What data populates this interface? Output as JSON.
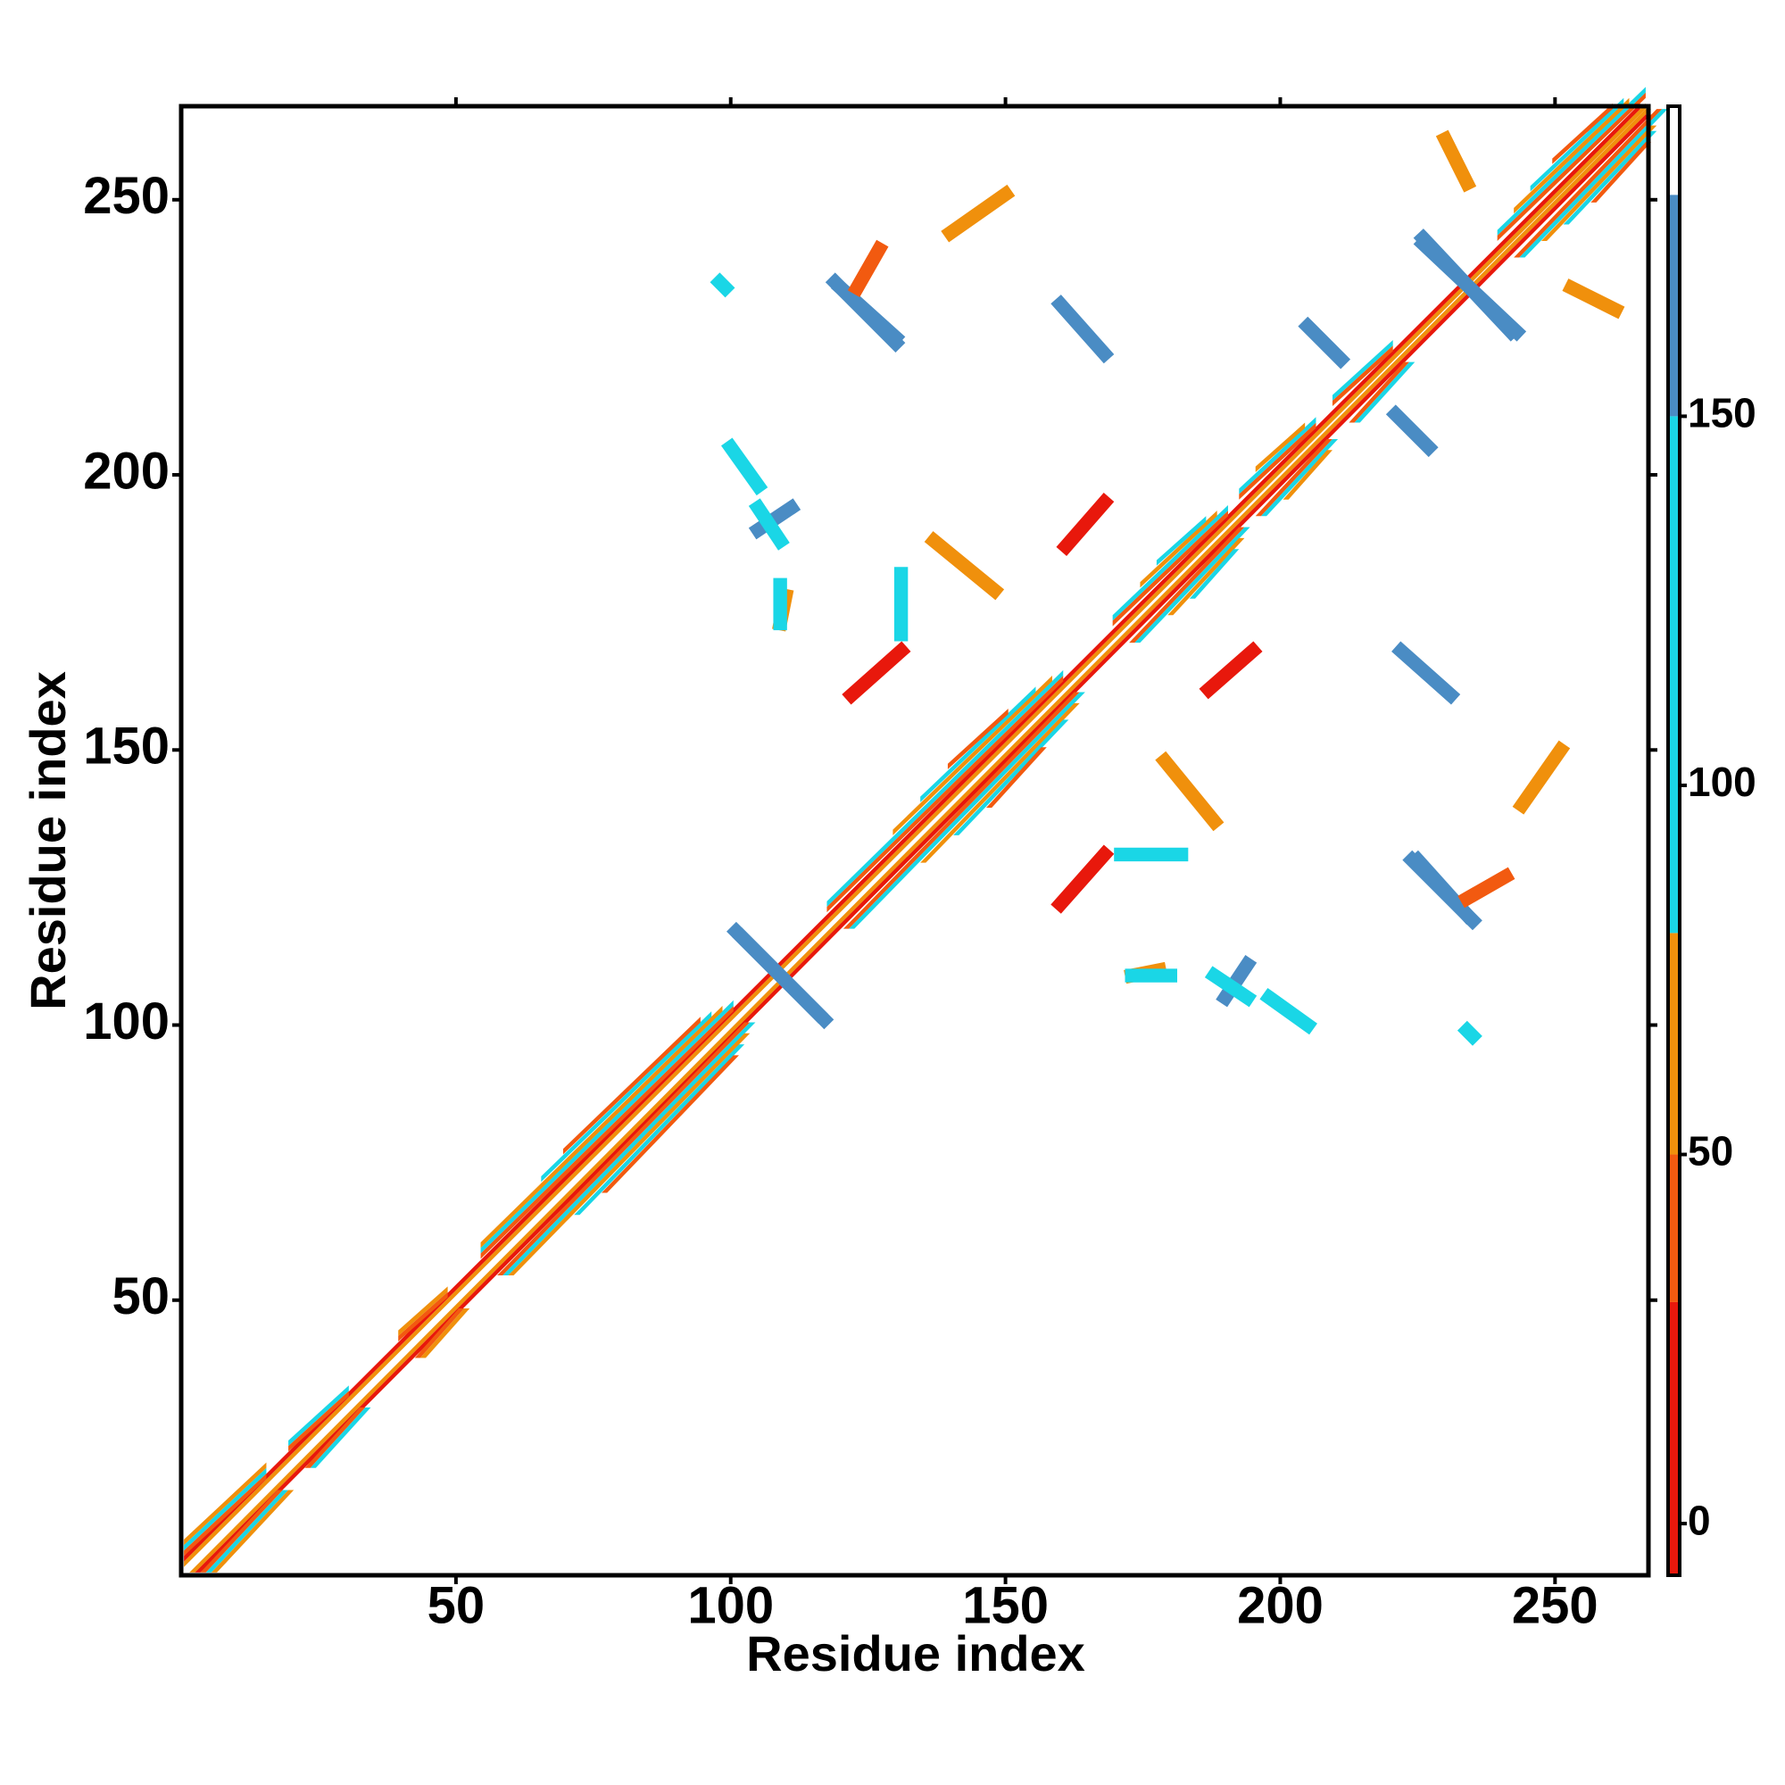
{
  "chart_data": {
    "type": "heatmap",
    "x_label": "Residue index",
    "y_label": "Residue index",
    "xlim": [
      0,
      267
    ],
    "ylim": [
      0,
      267
    ],
    "xticks": [
      50,
      100,
      150,
      200,
      250
    ],
    "yticks": [
      50,
      100,
      150,
      200,
      250
    ],
    "colorbar": {
      "lim": [
        -7,
        192
      ],
      "ticks": [
        0,
        50,
        100,
        150
      ],
      "levels": [
        {
          "from": -7,
          "to": 30,
          "color": "#e8180c"
        },
        {
          "from": 30,
          "to": 50,
          "color": "#f25a10"
        },
        {
          "from": 50,
          "to": 80,
          "color": "#f0900c"
        },
        {
          "from": 80,
          "to": 150,
          "color": "#1ad6e6"
        },
        {
          "from": 150,
          "to": 180,
          "color": "#4a8cc4"
        },
        {
          "from": 180,
          "to": 192,
          "color": "#ffffff"
        }
      ]
    },
    "bands": [
      [
        1,
        266,
        1,
        55
      ],
      [
        1,
        265,
        2,
        20
      ],
      [
        1,
        15,
        3,
        40
      ],
      [
        1,
        15,
        4,
        90
      ],
      [
        1,
        15,
        5,
        60
      ],
      [
        20,
        30,
        3,
        40
      ],
      [
        20,
        30,
        4,
        100
      ],
      [
        40,
        48,
        3,
        40
      ],
      [
        40,
        48,
        4,
        60
      ],
      [
        55,
        100,
        3,
        40
      ],
      [
        55,
        100,
        4,
        100
      ],
      [
        55,
        98,
        5,
        60
      ],
      [
        66,
        96,
        6,
        110
      ],
      [
        70,
        94,
        7,
        45
      ],
      [
        118,
        160,
        3,
        40
      ],
      [
        118,
        160,
        4,
        110
      ],
      [
        130,
        158,
        5,
        60
      ],
      [
        135,
        155,
        6,
        120
      ],
      [
        140,
        150,
        7,
        40
      ],
      [
        170,
        190,
        3,
        45
      ],
      [
        170,
        190,
        4,
        110
      ],
      [
        175,
        188,
        5,
        60
      ],
      [
        178,
        186,
        6,
        120
      ],
      [
        193,
        206,
        3,
        40
      ],
      [
        193,
        206,
        4,
        110
      ],
      [
        196,
        204,
        5,
        60
      ],
      [
        210,
        220,
        3,
        40
      ],
      [
        210,
        220,
        4,
        110
      ],
      [
        240,
        266,
        3,
        40
      ],
      [
        240,
        266,
        4,
        110
      ],
      [
        243,
        263,
        5,
        60
      ],
      [
        246,
        262,
        6,
        120
      ],
      [
        250,
        260,
        7,
        45
      ]
    ],
    "contacts": [
      {
        "x": [
          101,
          116
        ],
        "y": [
          117,
          102
        ],
        "value": 165
      },
      {
        "x": [
          119,
          130
        ],
        "y": [
          235,
          224
        ],
        "value": 165
      },
      {
        "x": [
          122,
          131
        ],
        "y": [
          160,
          168
        ],
        "value": 20
      },
      {
        "x": [
          161,
          168
        ],
        "y": [
          187,
          195
        ],
        "value": 25
      },
      {
        "x": [
          105,
          111
        ],
        "y": [
          190,
          194
        ],
        "value": 160
      },
      {
        "x": [
          226,
          242
        ],
        "y": [
          243,
          226
        ],
        "value": 165
      },
      {
        "x": [
          225,
          234
        ],
        "y": [
          130,
          120
        ],
        "value": 165
      },
      {
        "x": [
          188,
          194
        ],
        "y": [
          109,
          105
        ],
        "value": 130
      },
      {
        "x": [
          205,
          211
        ],
        "y": [
          227,
          221
        ],
        "value": 165
      },
      {
        "x": [
          234,
          235
        ],
        "y": [
          99,
          98
        ],
        "value": 120
      },
      {
        "x": [
          140,
          150
        ],
        "y": [
          244,
          251
        ],
        "value": 60
      },
      {
        "x": [
          123,
          127
        ],
        "y": [
          234,
          241
        ],
        "value": 40
      },
      {
        "x": [
          171,
          182
        ],
        "y": [
          131,
          131
        ],
        "value": 110
      },
      {
        "x": [
          198,
          205
        ],
        "y": [
          105,
          100
        ],
        "value": 120
      },
      {
        "x": [
          230,
          234
        ],
        "y": [
          261,
          253
        ],
        "value": 60
      },
      {
        "x": [
          222,
          231
        ],
        "y": [
          168,
          160
        ],
        "value": 155
      },
      {
        "x": [
          179,
          188
        ],
        "y": [
          148,
          137
        ],
        "value": 60
      },
      {
        "x": [
          109,
          110
        ],
        "y": [
          173,
          178
        ],
        "value": 60
      },
      {
        "x": [
          173,
          180
        ],
        "y": [
          109,
          109
        ],
        "value": 110
      }
    ]
  }
}
